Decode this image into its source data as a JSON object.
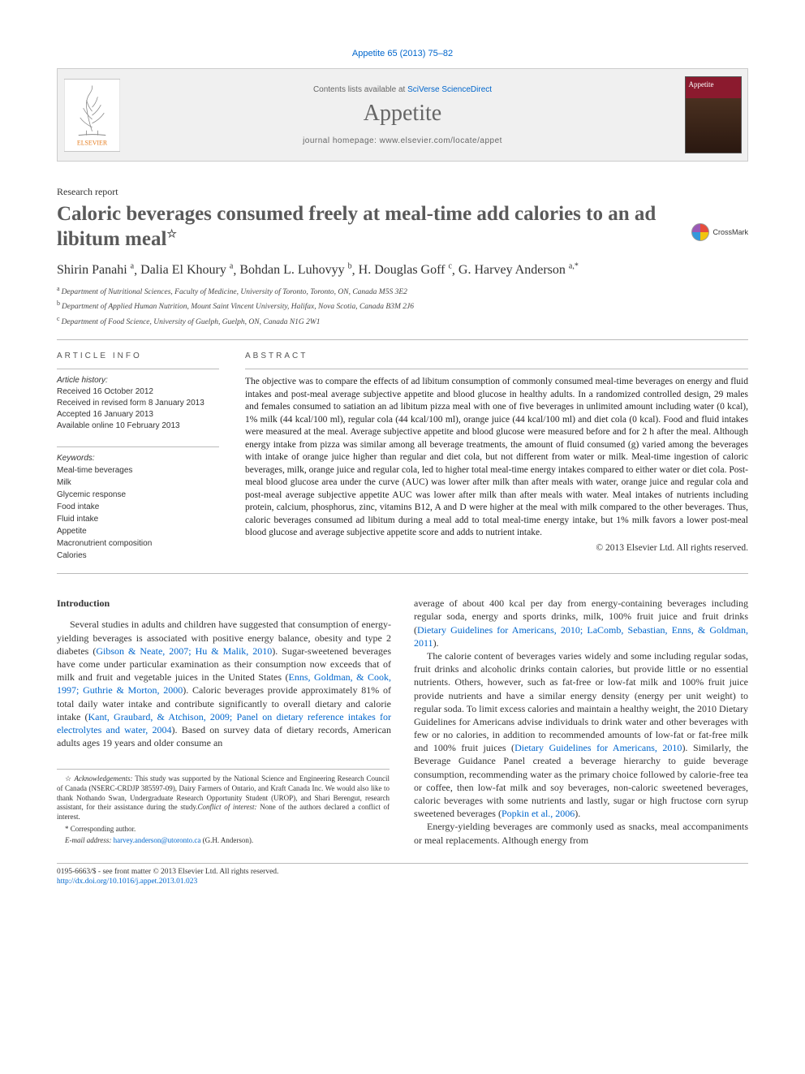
{
  "citation": "Appetite 65 (2013) 75–82",
  "header": {
    "contents_prefix": "Contents lists available at ",
    "contents_link": "SciVerse ScienceDirect",
    "journal": "Appetite",
    "homepage": "journal homepage: www.elsevier.com/locate/appet",
    "cover_title": "Appetite"
  },
  "article": {
    "type": "Research report",
    "title": "Caloric beverages consumed freely at meal-time add calories to an ad libitum meal",
    "star": "☆",
    "crossmark": "CrossMark"
  },
  "authors_html": "Shirin Panahi",
  "authors": [
    {
      "name": "Shirin Panahi",
      "aff": "a"
    },
    {
      "name": "Dalia El Khoury",
      "aff": "a"
    },
    {
      "name": "Bohdan L. Luhovyy",
      "aff": "b"
    },
    {
      "name": "H. Douglas Goff",
      "aff": "c"
    },
    {
      "name": "G. Harvey Anderson",
      "aff": "a,",
      "corr": true
    }
  ],
  "affiliations": [
    {
      "sup": "a",
      "text": "Department of Nutritional Sciences, Faculty of Medicine, University of Toronto, Toronto, ON, Canada M5S 3E2"
    },
    {
      "sup": "b",
      "text": "Department of Applied Human Nutrition, Mount Saint Vincent University, Halifax, Nova Scotia, Canada B3M 2J6"
    },
    {
      "sup": "c",
      "text": "Department of Food Science, University of Guelph, Guelph, ON, Canada N1G 2W1"
    }
  ],
  "info": {
    "head": "ARTICLE INFO",
    "history_head": "Article history:",
    "history": [
      "Received 16 October 2012",
      "Received in revised form 8 January 2013",
      "Accepted 16 January 2013",
      "Available online 10 February 2013"
    ],
    "keywords_head": "Keywords:",
    "keywords": [
      "Meal-time beverages",
      "Milk",
      "Glycemic response",
      "Food intake",
      "Fluid intake",
      "Appetite",
      "Macronutrient composition",
      "Calories"
    ]
  },
  "abstract": {
    "head": "ABSTRACT",
    "text": "The objective was to compare the effects of ad libitum consumption of commonly consumed meal-time beverages on energy and fluid intakes and post-meal average subjective appetite and blood glucose in healthy adults. In a randomized controlled design, 29 males and females consumed to satiation an ad libitum pizza meal with one of five beverages in unlimited amount including water (0 kcal), 1% milk (44 kcal/100 ml), regular cola (44 kcal/100 ml), orange juice (44 kcal/100 ml) and diet cola (0 kcal). Food and fluid intakes were measured at the meal. Average subjective appetite and blood glucose were measured before and for 2 h after the meal. Although energy intake from pizza was similar among all beverage treatments, the amount of fluid consumed (g) varied among the beverages with intake of orange juice higher than regular and diet cola, but not different from water or milk. Meal-time ingestion of caloric beverages, milk, orange juice and regular cola, led to higher total meal-time energy intakes compared to either water or diet cola. Post-meal blood glucose area under the curve (AUC) was lower after milk than after meals with water, orange juice and regular cola and post-meal average subjective appetite AUC was lower after milk than after meals with water. Meal intakes of nutrients including protein, calcium, phosphorus, zinc, vitamins B12, A and D were higher at the meal with milk compared to the other beverages. Thus, caloric beverages consumed ad libitum during a meal add to total meal-time energy intake, but 1% milk favors a lower post-meal blood glucose and average subjective appetite score and adds to nutrient intake.",
    "copyright": "© 2013 Elsevier Ltd. All rights reserved."
  },
  "body": {
    "introduction_head": "Introduction",
    "left_paragraph": "Several studies in adults and children have suggested that consumption of energy-yielding beverages is associated with positive energy balance, obesity and type 2 diabetes (Gibson & Neate, 2007; Hu & Malik, 2010). Sugar-sweetened beverages have come under particular examination as their consumption now exceeds that of milk and fruit and vegetable juices in the United States (Enns, Goldman, & Cook, 1997; Guthrie & Morton, 2000). Caloric beverages provide approximately 81% of total daily water intake and contribute significantly to overall dietary and calorie intake (Kant, Graubard, & Atchison, 2009; Panel on dietary reference intakes for electrolytes and water, 2004). Based on survey data of dietary records, American adults ages 19 years and older consume an",
    "right_p1": "average of about 400 kcal per day from energy-containing beverages including regular soda, energy and sports drinks, milk, 100% fruit juice and fruit drinks (Dietary Guidelines for Americans, 2010; LaComb, Sebastian, Enns, & Goldman, 2011).",
    "right_p2": "The calorie content of beverages varies widely and some including regular sodas, fruit drinks and alcoholic drinks contain calories, but provide little or no essential nutrients. Others, however, such as fat-free or low-fat milk and 100% fruit juice provide nutrients and have a similar energy density (energy per unit weight) to regular soda. To limit excess calories and maintain a healthy weight, the 2010 Dietary Guidelines for Americans advise individuals to drink water and other beverages with few or no calories, in addition to recommended amounts of low-fat or fat-free milk and 100% fruit juices (Dietary Guidelines for Americans, 2010). Similarly, the Beverage Guidance Panel created a beverage hierarchy to guide beverage consumption, recommending water as the primary choice followed by calorie-free tea or coffee, then low-fat milk and soy beverages, non-caloric sweetened beverages, caloric beverages with some nutrients and lastly, sugar or high fructose corn syrup sweetened beverages (Popkin et al., 2006).",
    "right_p3": "Energy-yielding beverages are commonly used as snacks, meal accompaniments or meal replacements. Although energy from",
    "left_links": [
      "Gibson & Neate, 2007; Hu & Malik, 2010",
      "Enns, Goldman, & Cook, 1997; Guthrie & Morton, 2000",
      "Kant, Graubard, & Atchison, 2009; Panel on dietary reference intakes for electrolytes and water, 2004"
    ],
    "right_links": [
      "Dietary Guidelines for Americans, 2010; LaComb, Sebastian, Enns, & Goldman, 2011",
      "Dietary Guidelines for Americans, 2010",
      "Popkin et al., 2006"
    ]
  },
  "footnotes": {
    "ack": "☆ Acknowledgements: This study was supported by the National Science and Engineering Research Council of Canada (NSERC-CRDJP 385597-09), Dairy Farmers of Ontario, and Kraft Canada Inc. We would also like to thank Nothando Swan, Undergraduate Research Opportunity Student (UROP), and Shari Berengut, research assistant, for their assistance during the study.Conflict of interest: None of the authors declared a conflict of interest.",
    "corr": "* Corresponding author.",
    "email_label": "E-mail address: ",
    "email": "harvey.anderson@utoronto.ca",
    "email_person": " (G.H. Anderson)."
  },
  "footer": {
    "line1": "0195-6663/$ - see front matter © 2013 Elsevier Ltd. All rights reserved.",
    "doi": "http://dx.doi.org/10.1016/j.appet.2013.01.023"
  },
  "colors": {
    "link": "#0066cc",
    "journal_title": "#666666",
    "cover_bg_top": "#8b1a2e"
  }
}
